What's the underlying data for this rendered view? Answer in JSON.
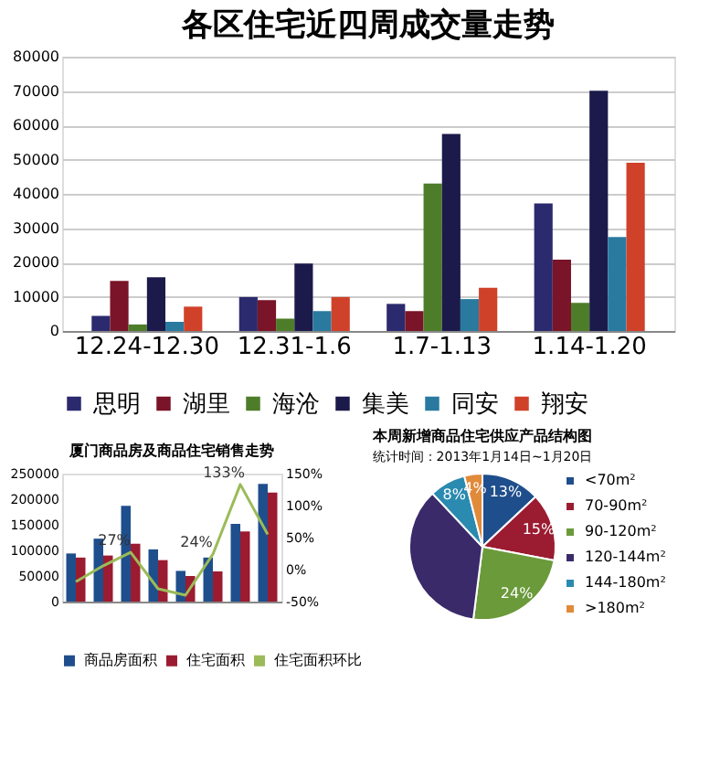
{
  "chart_data": [
    {
      "type": "bar",
      "title": "各区住宅近四周成交量走势",
      "categories": [
        "12.24-12.30",
        "12.31-1.6",
        "1.7-1.13",
        "1.14-1.20"
      ],
      "ylim": [
        0,
        80000
      ],
      "yticks": [
        0,
        10000,
        20000,
        30000,
        40000,
        50000,
        60000,
        70000,
        80000
      ],
      "grid": "y",
      "legend": "bottom",
      "series": [
        {
          "name": "思明",
          "color": "#2b2a6e",
          "values": [
            4400,
            9900,
            7900,
            37200
          ]
        },
        {
          "name": "湖里",
          "color": "#7a1428",
          "values": [
            14600,
            9000,
            5800,
            20800
          ]
        },
        {
          "name": "海沧",
          "color": "#4e7d2a",
          "values": [
            1900,
            3600,
            43000,
            8200
          ]
        },
        {
          "name": "集美",
          "color": "#1c1a4a",
          "values": [
            15700,
            19700,
            57500,
            70100
          ]
        },
        {
          "name": "同安",
          "color": "#2a7aa0",
          "values": [
            2700,
            5800,
            9300,
            27400
          ]
        },
        {
          "name": "翔安",
          "color": "#d0412a",
          "values": [
            7100,
            9900,
            12600,
            49100
          ]
        }
      ]
    },
    {
      "type": "bar",
      "title": "厦门商品房及商品住宅销售走势",
      "categories": [
        null,
        null,
        null,
        null,
        null,
        null,
        null,
        null
      ],
      "ylim": [
        0,
        250000
      ],
      "yticks": [
        0,
        50000,
        100000,
        150000,
        200000,
        250000
      ],
      "y2lim": [
        -50,
        150
      ],
      "y2ticks": [
        {
          "value": -50,
          "label": "-50%"
        },
        {
          "value": 0,
          "label": "0%"
        },
        {
          "value": 50,
          "label": "50%"
        },
        {
          "value": 100,
          "label": "100%"
        },
        {
          "value": 150,
          "label": "150%"
        }
      ],
      "legend": "bottom",
      "series": [
        {
          "name": "商品房面积",
          "color": "#1f4e8c",
          "values": [
            94000,
            123000,
            187000,
            102000,
            60000,
            86000,
            152000,
            230000
          ]
        },
        {
          "name": "住宅面积",
          "color": "#9b1b30",
          "values": [
            86000,
            90000,
            113000,
            81000,
            50000,
            59000,
            137000,
            213000
          ]
        },
        {
          "name": "住宅面积环比",
          "type": "line",
          "axis": "y2",
          "color": "#9bbb59",
          "values": [
            -19,
            6,
            27,
            -30,
            -40,
            24,
            133,
            55
          ],
          "value_labels": [
            null,
            null,
            "27%",
            null,
            null,
            "24%",
            "133%",
            null
          ]
        }
      ]
    },
    {
      "type": "pie",
      "title": "本周新增商品住宅供应产品结构图",
      "categories": [
        "<70m²",
        "70-90m²",
        "90-120m²",
        "120-144m²",
        "144-180m²",
        ">180m²"
      ],
      "values": [
        13,
        15,
        24,
        36,
        8,
        4
      ],
      "colors": [
        "#1f4e8c",
        "#9b1b30",
        "#6a9a3a",
        "#3a2a6a",
        "#2a8ab0",
        "#e08a3a"
      ],
      "value_labels": [
        "13%",
        "15%",
        "24%",
        null,
        "8%",
        "4%"
      ],
      "legend": "right",
      "annotations": [
        "统计时间：2013年1月14日~1月20日"
      ]
    }
  ]
}
